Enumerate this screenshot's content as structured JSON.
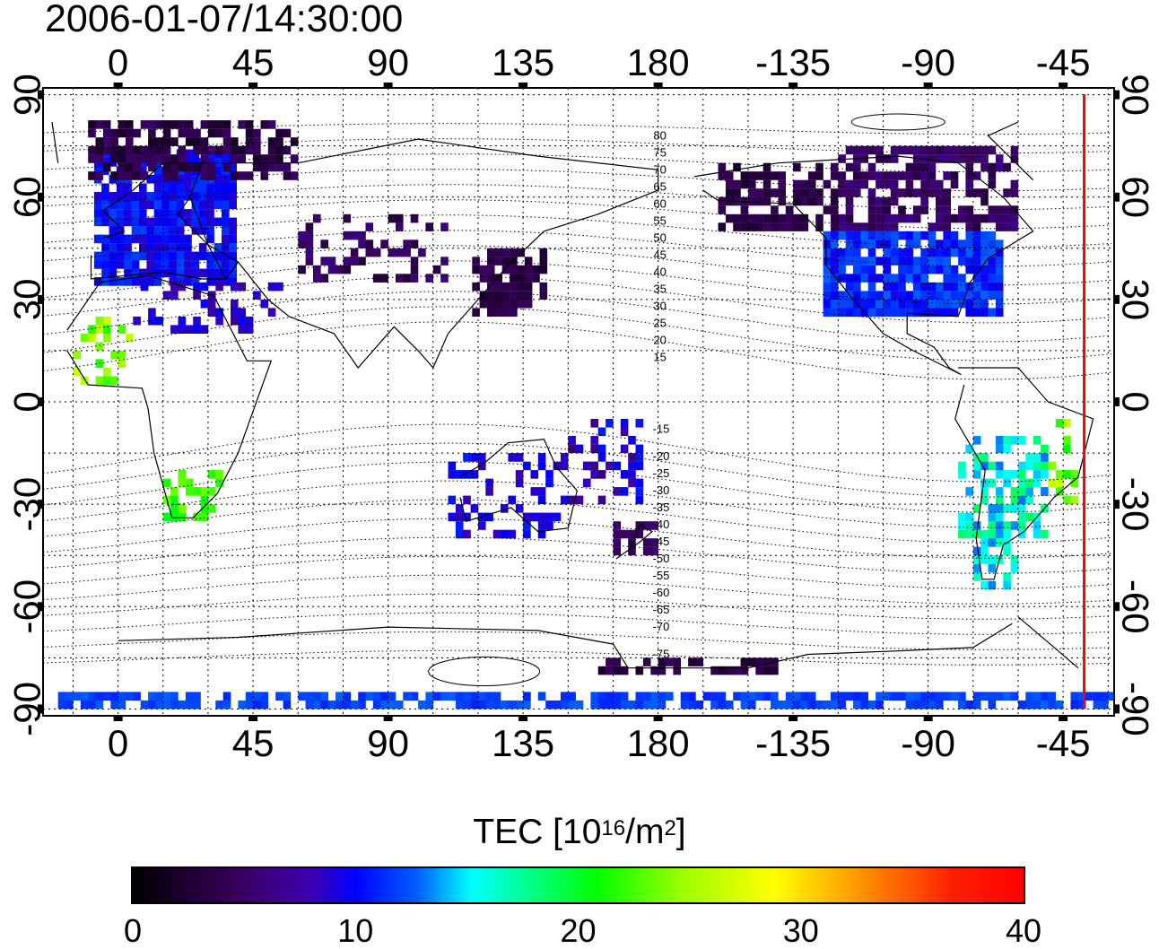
{
  "title": "2006-01-07/14:30:00",
  "map": {
    "lon_ticks": [
      "0",
      "45",
      "90",
      "135",
      "180",
      "-135",
      "-90",
      "-45"
    ],
    "lon_values": [
      0,
      45,
      90,
      135,
      180,
      -135,
      -90,
      -45
    ],
    "lat_ticks": [
      "90",
      "60",
      "30",
      "0",
      "-30",
      "-60",
      "-90"
    ],
    "lat_values": [
      90,
      60,
      30,
      0,
      -30,
      -60,
      -90
    ],
    "lon_range_east": [
      -25,
      332
    ],
    "lat_range": [
      -92,
      92
    ],
    "contour_labels_north": [
      "80",
      "75",
      "70",
      "65",
      "60",
      "55",
      "50",
      "45",
      "40",
      "35",
      "30",
      "25",
      "20",
      "15"
    ],
    "contour_labels_south": [
      "-15",
      "-20",
      "-25",
      "-30",
      "-35",
      "-40",
      "-45",
      "-50",
      "-55",
      "-60",
      "-65",
      "-70",
      "-75"
    ],
    "terminator_longitude": -38,
    "terminator_color": "#ff0000"
  },
  "colorbar": {
    "label": "TEC  [10",
    "label_exp": "16",
    "label_unit": "/m",
    "label_unit_exp": "2",
    "label_close": "]",
    "min": 0,
    "max": 40,
    "ticks": [
      "0",
      "10",
      "20",
      "30",
      "40"
    ],
    "colors": [
      "#000000",
      "#3d00b0",
      "#0000ff",
      "#00ffff",
      "#00ff00",
      "#ffff00",
      "#ff0000"
    ]
  }
}
